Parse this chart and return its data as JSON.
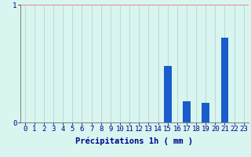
{
  "categories": [
    0,
    1,
    2,
    3,
    4,
    5,
    6,
    7,
    8,
    9,
    10,
    11,
    12,
    13,
    14,
    15,
    16,
    17,
    18,
    19,
    20,
    21,
    22,
    23
  ],
  "values": [
    0,
    0,
    0,
    0,
    0,
    0,
    0,
    0,
    0,
    0,
    0,
    0,
    0,
    0,
    0,
    0.48,
    0,
    0.18,
    0,
    0.17,
    0,
    0.72,
    0,
    0
  ],
  "bar_color": "#1a5ccc",
  "background_color": "#d8f5f0",
  "hgrid_color": "#e88888",
  "vgrid_color": "#c0d8d8",
  "axis_color": "#888888",
  "text_color": "#000088",
  "xlabel": "Précipitations 1h ( mm )",
  "ylim": [
    0,
    1.0
  ],
  "yticks": [
    0,
    1
  ],
  "xlim": [
    -0.5,
    23.5
  ],
  "label_fontsize": 7.5,
  "tick_fontsize": 6.5
}
